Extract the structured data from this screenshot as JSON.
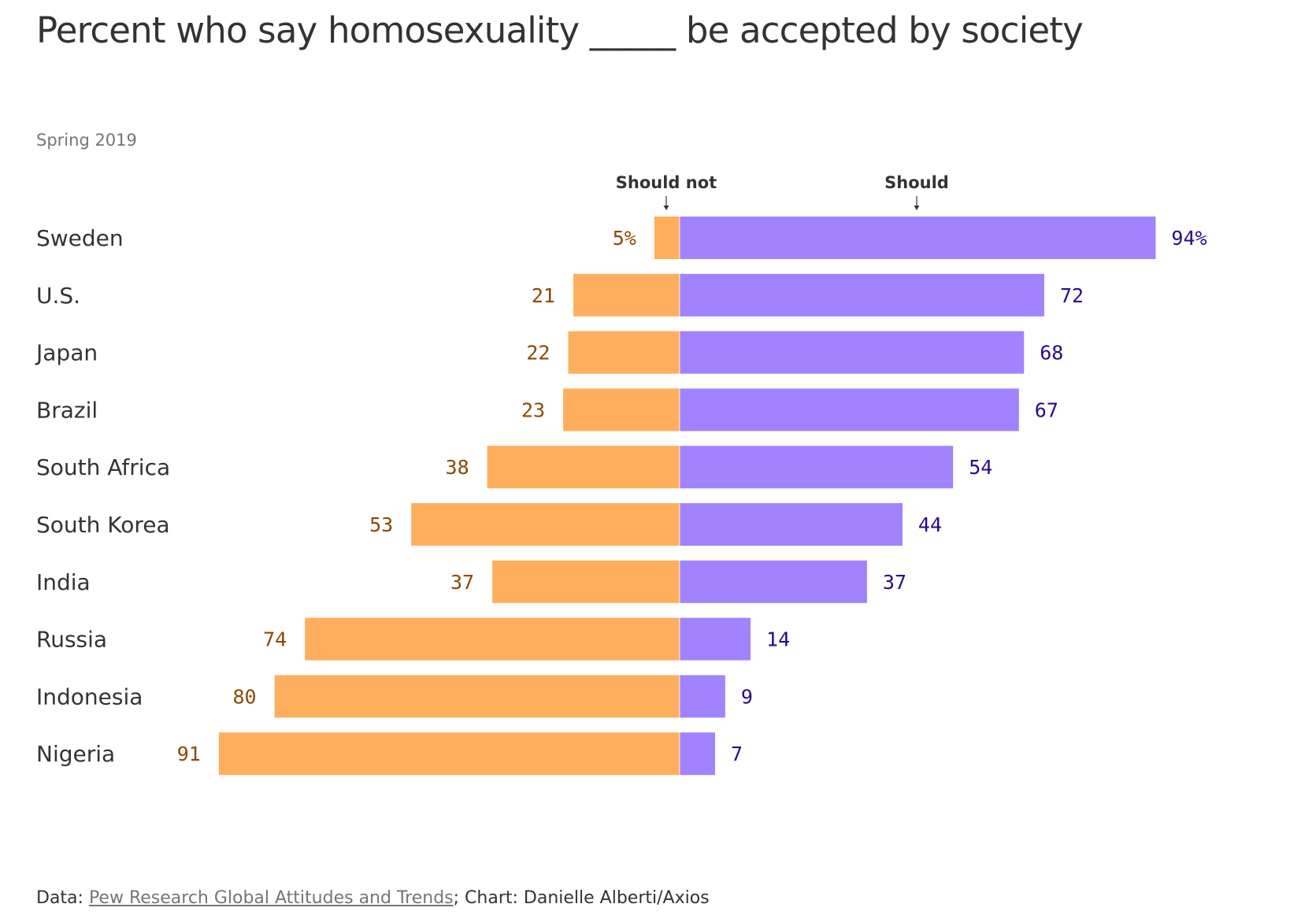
{
  "title": "Percent who say homosexuality _____ be accepted by society",
  "subtitle": "Spring 2019",
  "footer": {
    "data_prefix": "Data: ",
    "source_link": "Pew Research Global Attitudes and Trends",
    "chart_credit": "; Chart: Danielle Alberti/Axios"
  },
  "colors": {
    "should_not": "#FFAE5E",
    "should": "#A182FF",
    "should_not_label": "#8A4A00",
    "should_label": "#2A0A8A"
  },
  "chart_data": {
    "type": "bar",
    "orientation": "horizontal-diverging",
    "categories": [
      "Sweden",
      "U.S.",
      "Japan",
      "Brazil",
      "South Africa",
      "South Korea",
      "India",
      "Russia",
      "Indonesia",
      "Nigeria"
    ],
    "series": [
      {
        "name": "Should not",
        "direction": "left",
        "values": [
          5,
          21,
          22,
          23,
          38,
          53,
          37,
          74,
          80,
          91
        ],
        "labels": [
          "5%",
          "21",
          "22",
          "23",
          "38",
          "53",
          "37",
          "74",
          "80",
          "91"
        ]
      },
      {
        "name": "Should",
        "direction": "right",
        "values": [
          94,
          72,
          68,
          67,
          54,
          44,
          37,
          14,
          9,
          7
        ],
        "labels": [
          "94%",
          "72",
          "68",
          "67",
          "54",
          "44",
          "37",
          "14",
          "9",
          "7"
        ]
      }
    ],
    "unit": "%"
  }
}
